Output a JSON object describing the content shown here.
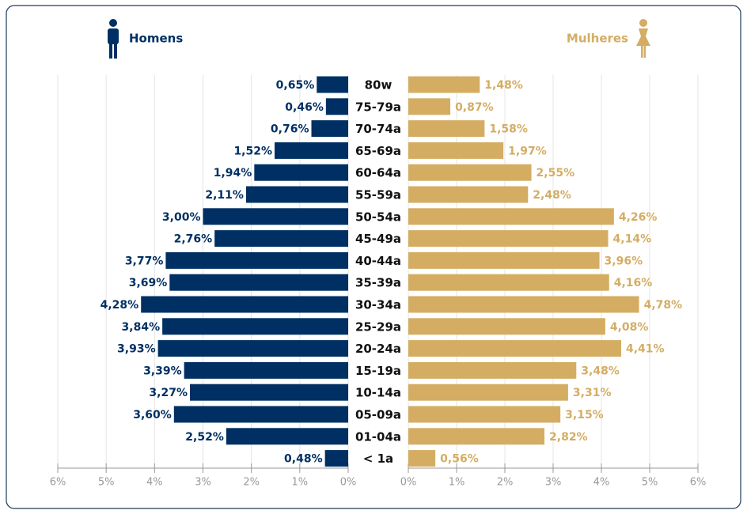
{
  "chart_data": {
    "type": "pyramid",
    "categories": [
      "80w",
      "75-79a",
      "70-74a",
      "65-69a",
      "60-64a",
      "55-59a",
      "50-54a",
      "45-49a",
      "40-44a",
      "35-39a",
      "30-34a",
      "25-29a",
      "20-24a",
      "15-19a",
      "10-14a",
      "05-09a",
      "01-04a",
      "< 1a"
    ],
    "series": [
      {
        "name": "Homens",
        "color": "#003063",
        "values": [
          0.65,
          0.46,
          0.76,
          1.52,
          1.94,
          2.11,
          3.0,
          2.76,
          3.77,
          3.69,
          4.28,
          3.84,
          3.93,
          3.39,
          3.27,
          3.6,
          2.52,
          0.48
        ],
        "value_labels": [
          "0,65%",
          "0,46%",
          "0,76%",
          "1,52%",
          "1,94%",
          "2,11%",
          "3,00%",
          "2,76%",
          "3,77%",
          "3,69%",
          "4,28%",
          "3,84%",
          "3,93%",
          "3,39%",
          "3,27%",
          "3,60%",
          "2,52%",
          "0,48%"
        ]
      },
      {
        "name": "Mulheres",
        "color": "#d4ad63",
        "values": [
          1.48,
          0.87,
          1.58,
          1.97,
          2.55,
          2.48,
          4.26,
          4.14,
          3.96,
          4.16,
          4.78,
          4.08,
          4.41,
          3.48,
          3.31,
          3.15,
          2.82,
          0.56
        ],
        "value_labels": [
          "1,48%",
          "0,87%",
          "1,58%",
          "1,97%",
          "2,55%",
          "2,48%",
          "4,26%",
          "4,14%",
          "3,96%",
          "4,16%",
          "4,78%",
          "4,08%",
          "4,41%",
          "3,48%",
          "3,31%",
          "3,15%",
          "2,82%",
          "0,56%"
        ]
      }
    ],
    "xlim": [
      0,
      6
    ],
    "xticks": [
      {
        "value": 0,
        "label": "0%"
      },
      {
        "value": 1,
        "label": "1%"
      },
      {
        "value": 2,
        "label": "2%"
      },
      {
        "value": 3,
        "label": "3%"
      },
      {
        "value": 4,
        "label": "4%"
      },
      {
        "value": 5,
        "label": "5%"
      },
      {
        "value": 6,
        "label": "6%"
      }
    ],
    "grid": true
  }
}
